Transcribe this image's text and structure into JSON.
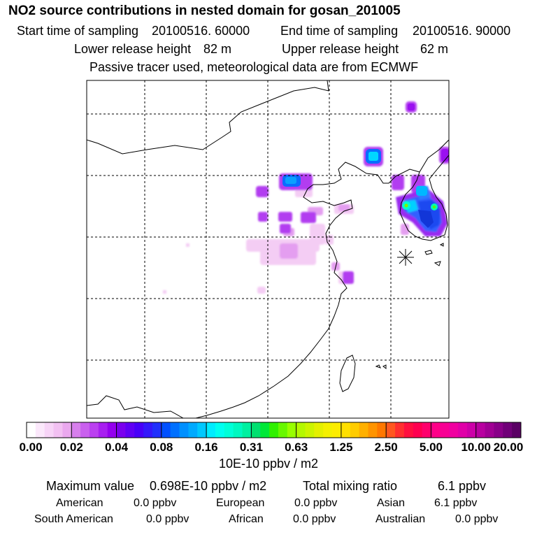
{
  "title": "NO2 source contributions in nested domain for gosan_201005",
  "header": {
    "start_label": "Start time of sampling",
    "start_value": "20100516. 60000",
    "end_label": "End time of sampling",
    "end_value": "20100516. 90000",
    "lower_label": "Lower release height",
    "lower_value": "82 m",
    "upper_label": "Upper release height",
    "upper_value": "62 m",
    "note": "Passive tracer used, meteorological data are from ECMWF"
  },
  "colorbar": {
    "ticks": [
      "0.00",
      "0.02",
      "0.04",
      "0.08",
      "0.16",
      "0.31",
      "0.63",
      "1.25",
      "2.50",
      "5.00",
      "10.00",
      "20.00"
    ],
    "colors": [
      [
        "#ffffff",
        "#fbe8fb",
        "#f7d4f7",
        "#f2c0f2",
        "#eaa8ee"
      ],
      [
        "#d77fec",
        "#c960ee",
        "#bb40f0",
        "#a81ff0",
        "#9400ee"
      ],
      [
        "#7a00ee",
        "#6000f4",
        "#4800f8",
        "#3418fb",
        "#2030fc"
      ],
      [
        "#0050ff",
        "#0070ff",
        "#0090ff",
        "#00aaff",
        "#00c8ff"
      ],
      [
        "#00ecff",
        "#00fff0",
        "#00ffd8",
        "#00f8c0",
        "#00f0a0"
      ],
      [
        "#00e070",
        "#00e838",
        "#30f000",
        "#68f800",
        "#98ff00"
      ],
      [
        "#b4f800",
        "#ccf400",
        "#e4f000",
        "#f4f000",
        "#fcec00"
      ],
      [
        "#ffe000",
        "#ffcc00",
        "#ffb000",
        "#ff9400",
        "#ff7800"
      ],
      [
        "#ff5820",
        "#ff3030",
        "#ff1040",
        "#ff0050",
        "#ff006c"
      ],
      [
        "#ff0088",
        "#f80094",
        "#f000a0",
        "#e000a8",
        "#cc00a8"
      ],
      [
        "#b800a0",
        "#a00094",
        "#880088",
        "#700078",
        "#5a0064"
      ]
    ],
    "unit": "10E-10 ppbv / m2"
  },
  "stats": {
    "max_label": "Maximum value",
    "max_value": "0.698E-10 ppbv / m2",
    "total_label": "Total mixing ratio",
    "total_value": "6.1 ppbv",
    "regions": [
      {
        "name": "American",
        "value": "0.0 ppbv"
      },
      {
        "name": "European",
        "value": "0.0 ppbv"
      },
      {
        "name": "Asian",
        "value": "6.1 ppbv"
      },
      {
        "name": "South American",
        "value": "0.0 ppbv"
      },
      {
        "name": "African",
        "value": "0.0 ppbv"
      },
      {
        "name": "Australian",
        "value": "0.0 ppbv"
      }
    ]
  }
}
